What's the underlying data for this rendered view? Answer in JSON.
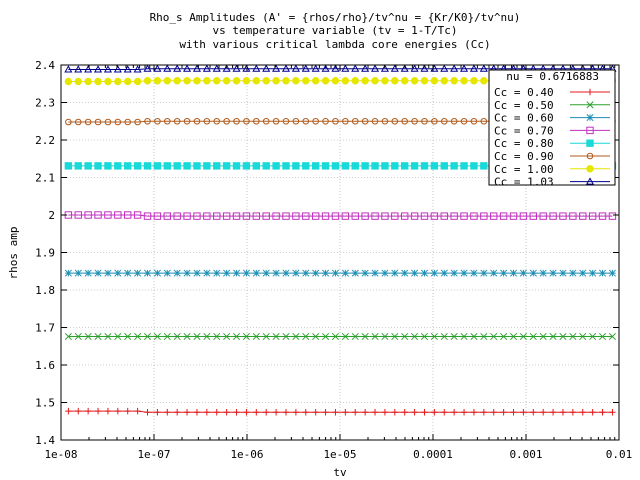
{
  "chart_data": {
    "type": "line",
    "title": [
      "Rho_s Amplitudes (A' = {rhos/rho}/tv^nu = {Kr/K0}/tv^nu)",
      "vs temperature variable (tv = 1-T/Tc)",
      "with various critical lambda core energies (Cc)"
    ],
    "xlabel": "tv",
    "ylabel": "rhos amp",
    "xscale": "log",
    "xlim": [
      1e-08,
      0.01
    ],
    "ylim": [
      1.4,
      2.4
    ],
    "xticks": [
      "1e-08",
      "1e-07",
      "1e-06",
      "1e-05",
      "0.0001",
      "0.001",
      "0.01"
    ],
    "xtick_values": [
      1e-08,
      1e-07,
      1e-06,
      1e-05,
      0.0001,
      0.001,
      0.01
    ],
    "yticks": [
      "1.4",
      "1.5",
      "1.6",
      "1.7",
      "1.8",
      "1.9",
      "2",
      "2.1",
      "2.2",
      "2.3",
      "2.4"
    ],
    "ytick_values": [
      1.4,
      1.5,
      1.6,
      1.7,
      1.8,
      1.9,
      2.0,
      2.1,
      2.2,
      2.3,
      2.4
    ],
    "grid": true,
    "legend_position": "top-right",
    "legend_header": "nu = 0.6716883",
    "x_range_points": [
      1.2e-08,
      0.0085
    ],
    "series": [
      {
        "name": "Cc = 0.40",
        "value": 1.474,
        "start_value": 1.477,
        "color": "#e41a1c",
        "marker": "plus"
      },
      {
        "name": "Cc = 0.50",
        "value": 1.676,
        "start_value": 1.676,
        "color": "#2ca02c",
        "marker": "cross"
      },
      {
        "name": "Cc = 0.60",
        "value": 1.845,
        "start_value": 1.845,
        "color": "#1f8fb4",
        "marker": "star"
      },
      {
        "name": "Cc = 0.70",
        "value": 1.997,
        "start_value": 2.0,
        "color": "#c030c0",
        "marker": "square-open"
      },
      {
        "name": "Cc = 0.80",
        "value": 2.131,
        "start_value": 2.131,
        "color": "#19d9d9",
        "marker": "square-filled"
      },
      {
        "name": "Cc = 0.90",
        "value": 2.25,
        "start_value": 2.248,
        "color": "#b05a1a",
        "marker": "circle-open"
      },
      {
        "name": "Cc = 1.00",
        "value": 2.358,
        "start_value": 2.356,
        "color": "#e6e600",
        "marker": "circle-filled"
      },
      {
        "name": "Cc = 1.03",
        "value": 2.39,
        "start_value": 2.388,
        "color": "#00008b",
        "marker": "triangle-open"
      }
    ]
  }
}
